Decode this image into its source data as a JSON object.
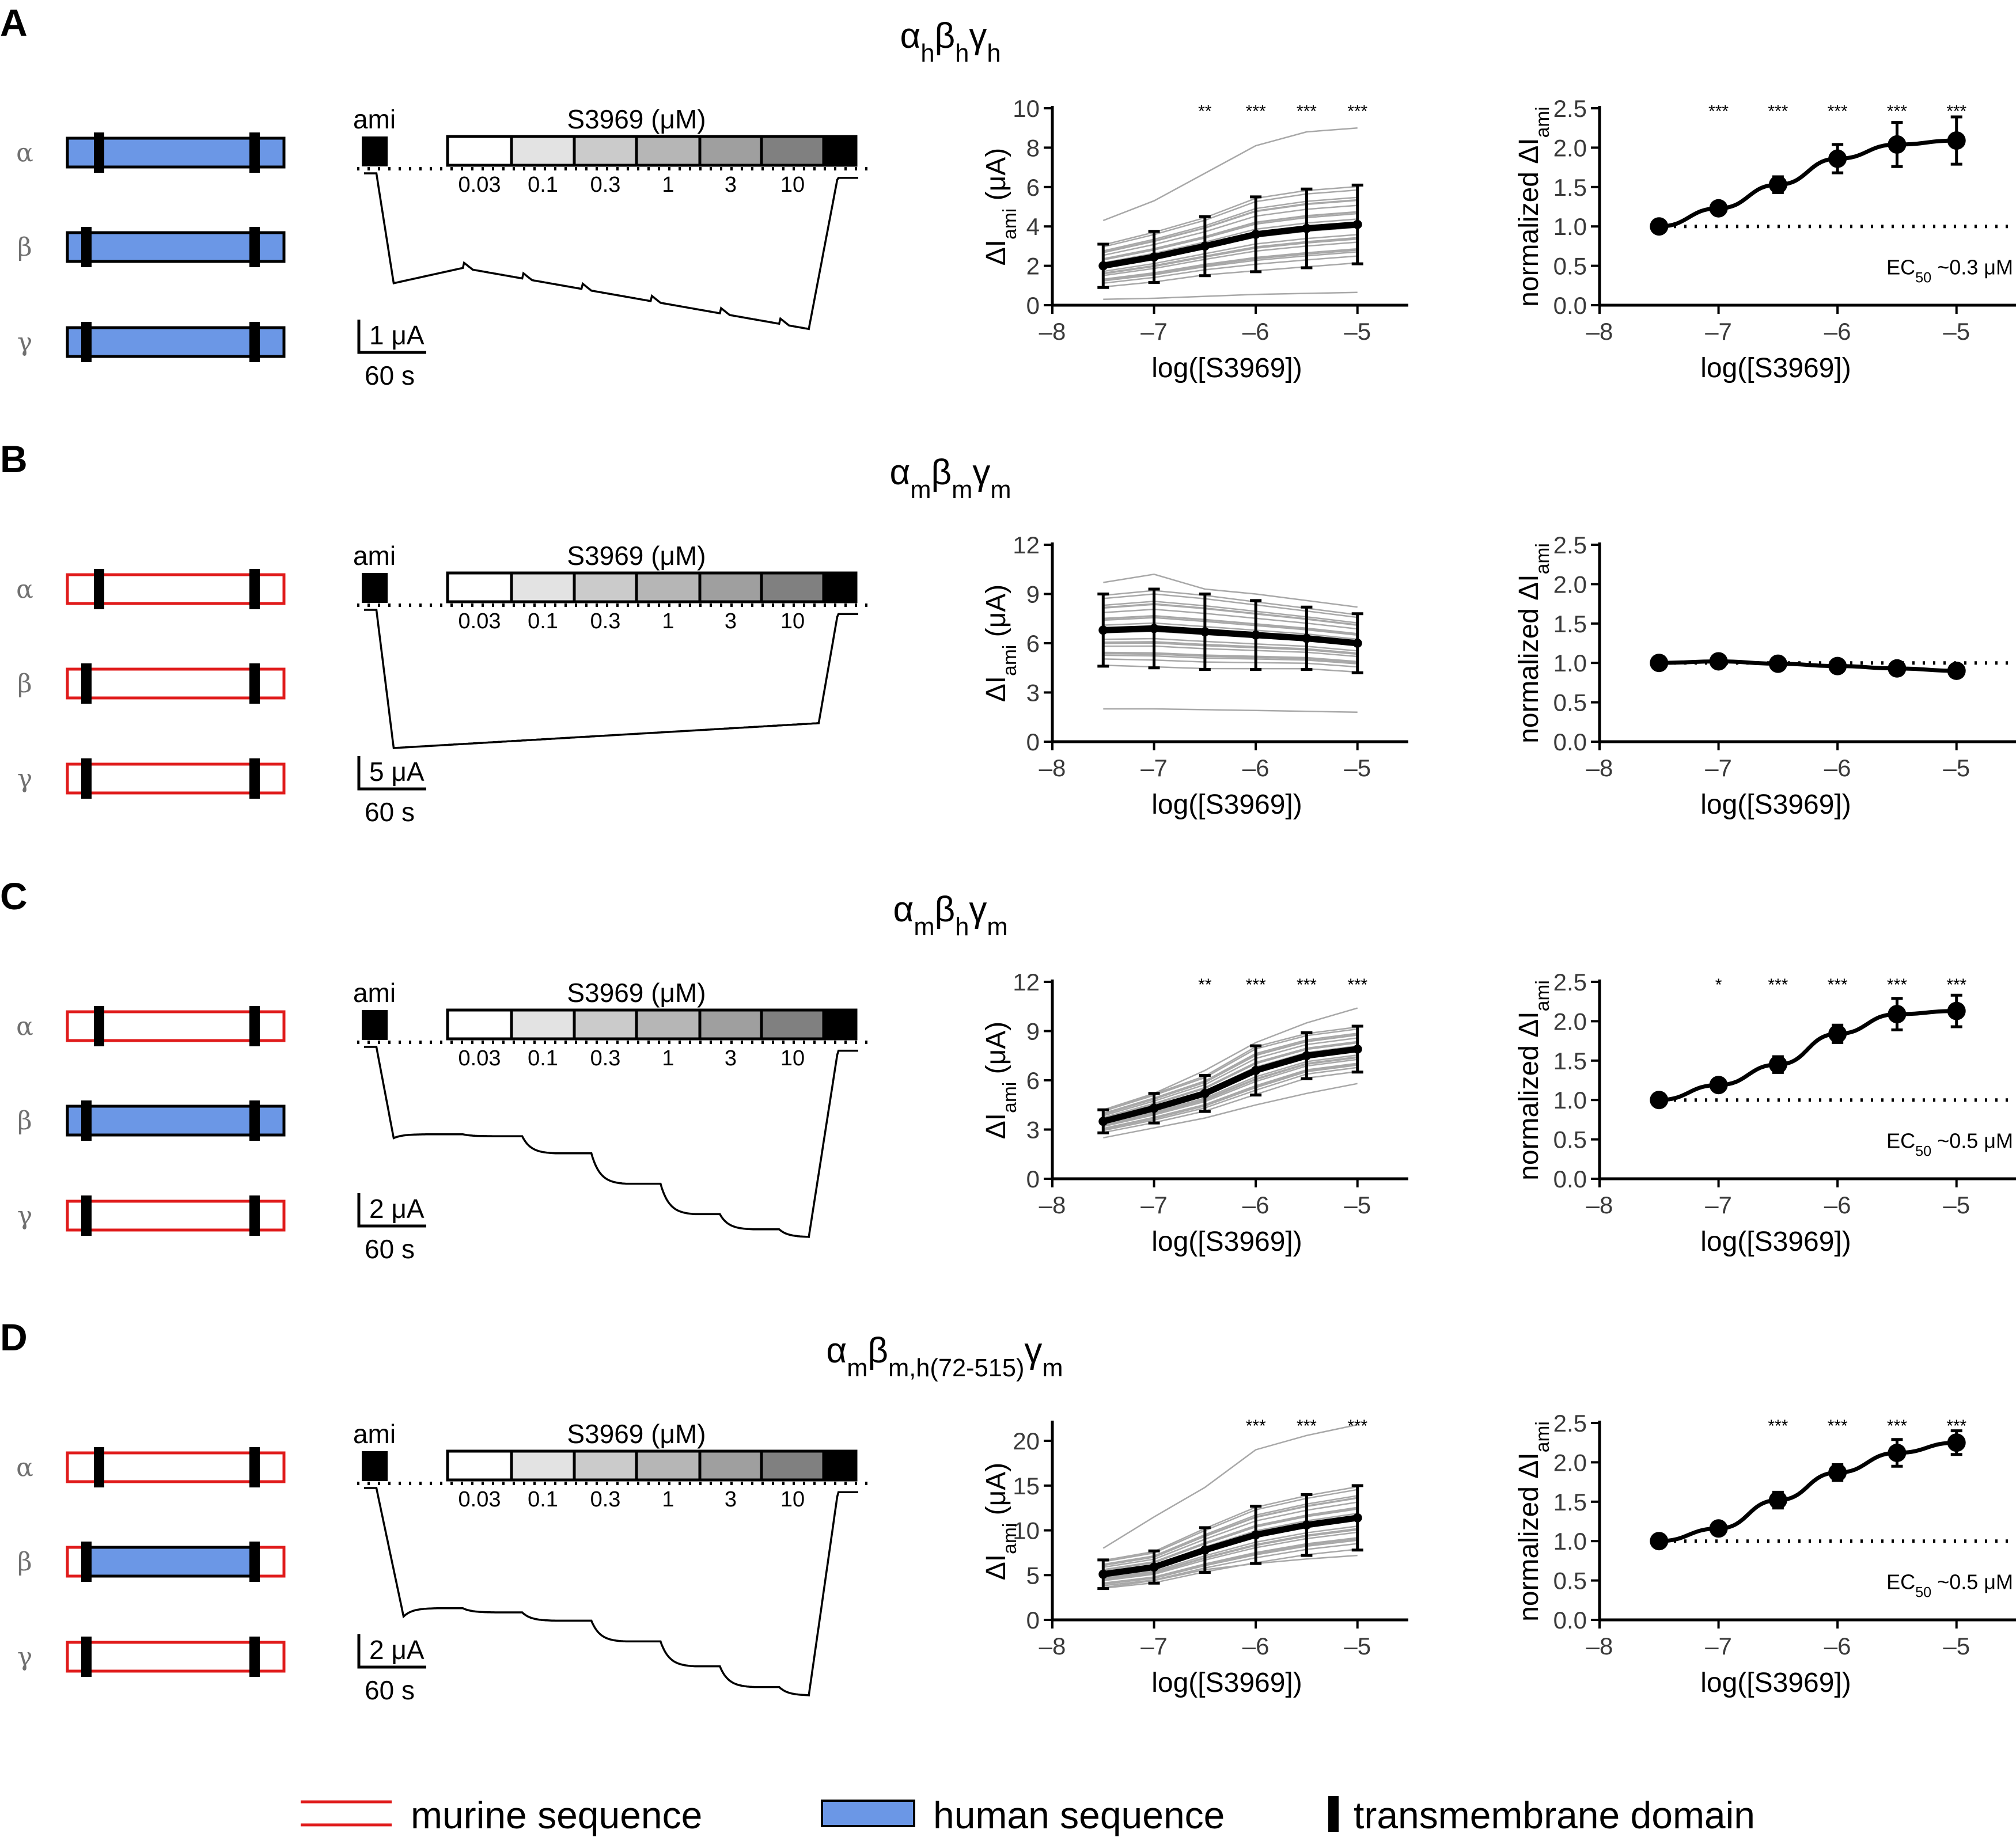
{
  "legend": {
    "murine": "murine sequence",
    "human": "human sequence",
    "tm": "transmembrane domain"
  },
  "colors": {
    "murine": "#e01b1b",
    "human": "#6b97e6",
    "individual": "#a8a8a8",
    "mean": "#000000"
  },
  "shared": {
    "ami_label": "ami",
    "s3969_label": "S3969 (μM)",
    "conc_labels": [
      "0.03",
      "0.1",
      "0.3",
      "1",
      "3",
      "10"
    ],
    "time_scale": "60 s",
    "xlabel": "log([S3969])",
    "ylabel_abs": "ΔI",
    "ylabel_abs_sub": "ami",
    "ylabel_abs_unit": " (μA)",
    "ylabel_norm": "normalized ΔI",
    "ylabel_norm_sub": "ami",
    "subunits": [
      "α",
      "β",
      "γ"
    ]
  },
  "panels": [
    {
      "letter": "A",
      "title": [
        [
          "α",
          false
        ],
        [
          "h",
          true
        ],
        [
          "β",
          false
        ],
        [
          "h",
          true
        ],
        [
          "γ",
          false
        ],
        [
          "h",
          true
        ]
      ],
      "subunit_human": [
        true,
        true,
        true
      ],
      "current_scale": "1 μA",
      "ec50": "~0.3 μM"
    },
    {
      "letter": "B",
      "title": [
        [
          "α",
          false
        ],
        [
          "m",
          true
        ],
        [
          "β",
          false
        ],
        [
          "m",
          true
        ],
        [
          "γ",
          false
        ],
        [
          "m",
          true
        ]
      ],
      "subunit_human": [
        false,
        false,
        false
      ],
      "current_scale": "5 μA",
      "ec50": ""
    },
    {
      "letter": "C",
      "title": [
        [
          "α",
          false
        ],
        [
          "m",
          true
        ],
        [
          "β",
          false
        ],
        [
          "h",
          true
        ],
        [
          "γ",
          false
        ],
        [
          "m",
          true
        ]
      ],
      "subunit_human": [
        false,
        true,
        false
      ],
      "current_scale": "2 μA",
      "ec50": "~0.5 μM"
    },
    {
      "letter": "D",
      "title": [
        [
          "α",
          false
        ],
        [
          "m",
          true
        ],
        [
          "β",
          false
        ],
        [
          "m,h(72-515)",
          true
        ],
        [
          "γ",
          false
        ],
        [
          "m",
          true
        ]
      ],
      "subunit_human": [
        false,
        "partial",
        false
      ],
      "current_scale": "2 μA",
      "ec50": "~0.5 μM"
    }
  ],
  "chart_data": [
    {
      "panel": "A",
      "type": "line",
      "ylabel": "ΔIami (μA)",
      "xlabel": "log([S3969])",
      "xlim": [
        -8,
        -4.5
      ],
      "ylim": [
        0,
        10
      ],
      "xticks": [
        -8,
        -7,
        -6,
        -5
      ],
      "yticks": [
        0,
        2,
        4,
        6,
        8,
        10
      ],
      "x": [
        -7.5,
        -7,
        -6.5,
        -6,
        -5.5,
        -5
      ],
      "series": [
        {
          "values": [
            2.0,
            2.45,
            3.0,
            3.6,
            3.9,
            4.1
          ],
          "error": [
            1.1,
            1.3,
            1.5,
            1.9,
            2.0,
            2.0
          ]
        }
      ],
      "individual_range": [
        [
          0.3,
          0.35,
          0.45,
          0.55,
          0.6,
          0.65
        ],
        [
          4.3,
          5.3,
          6.7,
          8.1,
          8.8,
          9.0
        ]
      ],
      "significance": [
        "",
        "",
        "**",
        "***",
        "***",
        "***"
      ]
    },
    {
      "panel": "A",
      "type": "line",
      "ylabel": "normalized ΔIami",
      "xlabel": "log([S3969])",
      "xlim": [
        -8,
        -4.5
      ],
      "ylim": [
        0,
        2.5
      ],
      "xticks": [
        -8,
        -7,
        -6,
        -5
      ],
      "yticks": [
        0.0,
        0.5,
        1.0,
        1.5,
        2.0,
        2.5
      ],
      "x": [
        -7.5,
        -7,
        -6.5,
        -6,
        -5.5,
        -5
      ],
      "series": [
        {
          "values": [
            1.0,
            1.23,
            1.53,
            1.86,
            2.04,
            2.09
          ],
          "error": [
            0.02,
            0.05,
            0.1,
            0.18,
            0.28,
            0.3
          ]
        }
      ],
      "significance": [
        "",
        "***",
        "***",
        "***",
        "***",
        "***"
      ],
      "ec50": "~0.3 μM"
    },
    {
      "panel": "B",
      "type": "line",
      "ylabel": "ΔIami (μA)",
      "xlabel": "log([S3969])",
      "xlim": [
        -8,
        -4.5
      ],
      "ylim": [
        0,
        12
      ],
      "xticks": [
        -8,
        -7,
        -6,
        -5
      ],
      "yticks": [
        0,
        3,
        6,
        9,
        12
      ],
      "x": [
        -7.5,
        -7,
        -6.5,
        -6,
        -5.5,
        -5
      ],
      "series": [
        {
          "values": [
            6.8,
            6.9,
            6.7,
            6.5,
            6.3,
            6.0
          ],
          "error": [
            2.2,
            2.4,
            2.3,
            2.1,
            1.9,
            1.8
          ]
        }
      ],
      "individual_range": [
        [
          2.0,
          2.0,
          1.95,
          1.9,
          1.85,
          1.8
        ],
        [
          9.7,
          10.2,
          9.3,
          9.0,
          8.6,
          8.2
        ]
      ],
      "significance": [
        "",
        "",
        "",
        "",
        "",
        ""
      ]
    },
    {
      "panel": "B",
      "type": "line",
      "ylabel": "normalized ΔIami",
      "xlabel": "log([S3969])",
      "xlim": [
        -8,
        -4.5
      ],
      "ylim": [
        0,
        2.5
      ],
      "xticks": [
        -8,
        -7,
        -6,
        -5
      ],
      "yticks": [
        0.0,
        0.5,
        1.0,
        1.5,
        2.0,
        2.5
      ],
      "x": [
        -7.5,
        -7,
        -6.5,
        -6,
        -5.5,
        -5
      ],
      "series": [
        {
          "values": [
            1.0,
            1.02,
            0.99,
            0.96,
            0.93,
            0.9
          ],
          "error": [
            0.02,
            0.03,
            0.03,
            0.04,
            0.05,
            0.07
          ]
        }
      ],
      "significance": [
        "",
        "",
        "",
        "",
        "",
        ""
      ]
    },
    {
      "panel": "C",
      "type": "line",
      "ylabel": "ΔIami (μA)",
      "xlabel": "log([S3969])",
      "xlim": [
        -8,
        -4.5
      ],
      "ylim": [
        0,
        12
      ],
      "xticks": [
        -8,
        -7,
        -6,
        -5
      ],
      "yticks": [
        0,
        3,
        6,
        9,
        12
      ],
      "x": [
        -7.5,
        -7,
        -6.5,
        -6,
        -5.5,
        -5
      ],
      "series": [
        {
          "values": [
            3.5,
            4.3,
            5.2,
            6.6,
            7.5,
            7.9
          ],
          "error": [
            0.7,
            0.9,
            1.1,
            1.5,
            1.4,
            1.4
          ]
        }
      ],
      "individual_range": [
        [
          2.5,
          3.1,
          3.7,
          4.5,
          5.2,
          5.8
        ],
        [
          4.2,
          5.2,
          6.6,
          8.3,
          9.5,
          10.4
        ]
      ],
      "significance": [
        "",
        "",
        "**",
        "***",
        "***",
        "***"
      ]
    },
    {
      "panel": "C",
      "type": "line",
      "ylabel": "normalized ΔIami",
      "xlabel": "log([S3969])",
      "xlim": [
        -8,
        -4.5
      ],
      "ylim": [
        0,
        2.5
      ],
      "xticks": [
        -8,
        -7,
        -6,
        -5
      ],
      "yticks": [
        0.0,
        0.5,
        1.0,
        1.5,
        2.0,
        2.5
      ],
      "x": [
        -7.5,
        -7,
        -6.5,
        -6,
        -5.5,
        -5
      ],
      "series": [
        {
          "values": [
            1.0,
            1.19,
            1.45,
            1.84,
            2.09,
            2.13
          ],
          "error": [
            0.02,
            0.06,
            0.1,
            0.11,
            0.2,
            0.2
          ]
        }
      ],
      "significance": [
        "",
        "*",
        "***",
        "***",
        "***",
        "***"
      ],
      "ec50": "~0.5 μM"
    },
    {
      "panel": "D",
      "type": "line",
      "ylabel": "ΔIami (μA)",
      "xlabel": "log([S3969])",
      "xlim": [
        -8,
        -4.5
      ],
      "ylim": [
        0,
        22
      ],
      "xticks": [
        -8,
        -7,
        -6,
        -5
      ],
      "yticks": [
        0,
        5,
        10,
        15,
        20
      ],
      "x": [
        -7.5,
        -7,
        -6.5,
        -6,
        -5.5,
        -5
      ],
      "series": [
        {
          "values": [
            5.1,
            5.9,
            7.8,
            9.5,
            10.6,
            11.4
          ],
          "error": [
            1.6,
            1.8,
            2.5,
            3.2,
            3.4,
            3.6
          ]
        }
      ],
      "individual_range": [
        [
          3.6,
          4.4,
          5.6,
          6.3,
          6.8,
          7.2
        ],
        [
          8.0,
          11.5,
          14.8,
          19.0,
          20.6,
          21.8
        ]
      ],
      "significance": [
        "",
        "",
        "",
        "***",
        "***",
        "***"
      ]
    },
    {
      "panel": "D",
      "type": "line",
      "ylabel": "normalized ΔIami",
      "xlabel": "log([S3969])",
      "xlim": [
        -8,
        -4.5
      ],
      "ylim": [
        0,
        2.5
      ],
      "xticks": [
        -8,
        -7,
        -6,
        -5
      ],
      "yticks": [
        0.0,
        0.5,
        1.0,
        1.5,
        2.0,
        2.5
      ],
      "x": [
        -7.5,
        -7,
        -6.5,
        -6,
        -5.5,
        -5
      ],
      "series": [
        {
          "values": [
            1.0,
            1.16,
            1.52,
            1.87,
            2.12,
            2.25
          ],
          "error": [
            0.02,
            0.04,
            0.1,
            0.1,
            0.17,
            0.15
          ]
        }
      ],
      "significance": [
        "",
        "",
        "***",
        "***",
        "***",
        "***"
      ],
      "ec50": "~0.5 μM"
    }
  ]
}
